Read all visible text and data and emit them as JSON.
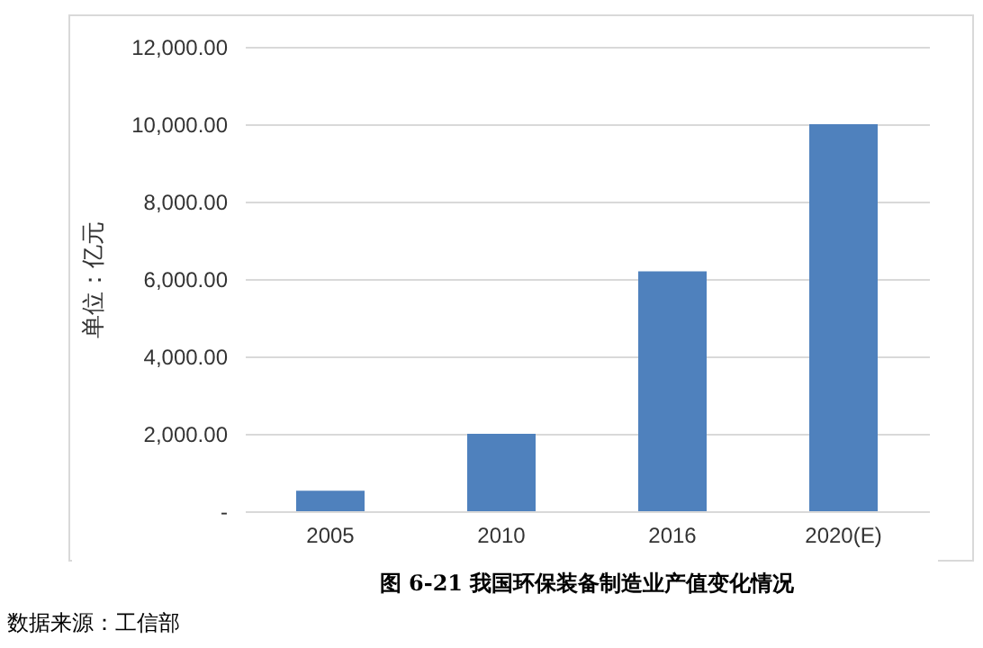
{
  "chart_data": {
    "type": "bar",
    "title": "图 6-21 我国环保装备制造业产值变化情况",
    "ylabel": "单位：亿元",
    "categories": [
      "2005",
      "2010",
      "2016",
      "2020(E)"
    ],
    "values": [
      530,
      2000,
      6200,
      10000
    ],
    "color": "#4f81bd",
    "ylim": [
      0,
      12000
    ],
    "yticks": [
      {
        "value": 0,
        "label": "-"
      },
      {
        "value": 2000,
        "label": "2,000.00"
      },
      {
        "value": 4000,
        "label": "4,000.00"
      },
      {
        "value": 6000,
        "label": "6,000.00"
      },
      {
        "value": 8000,
        "label": "8,000.00"
      },
      {
        "value": 10000,
        "label": "10,000.00"
      },
      {
        "value": 12000,
        "label": "12,000.00"
      }
    ],
    "grid": "y",
    "annotations": [
      "数据来源：工信部"
    ]
  }
}
